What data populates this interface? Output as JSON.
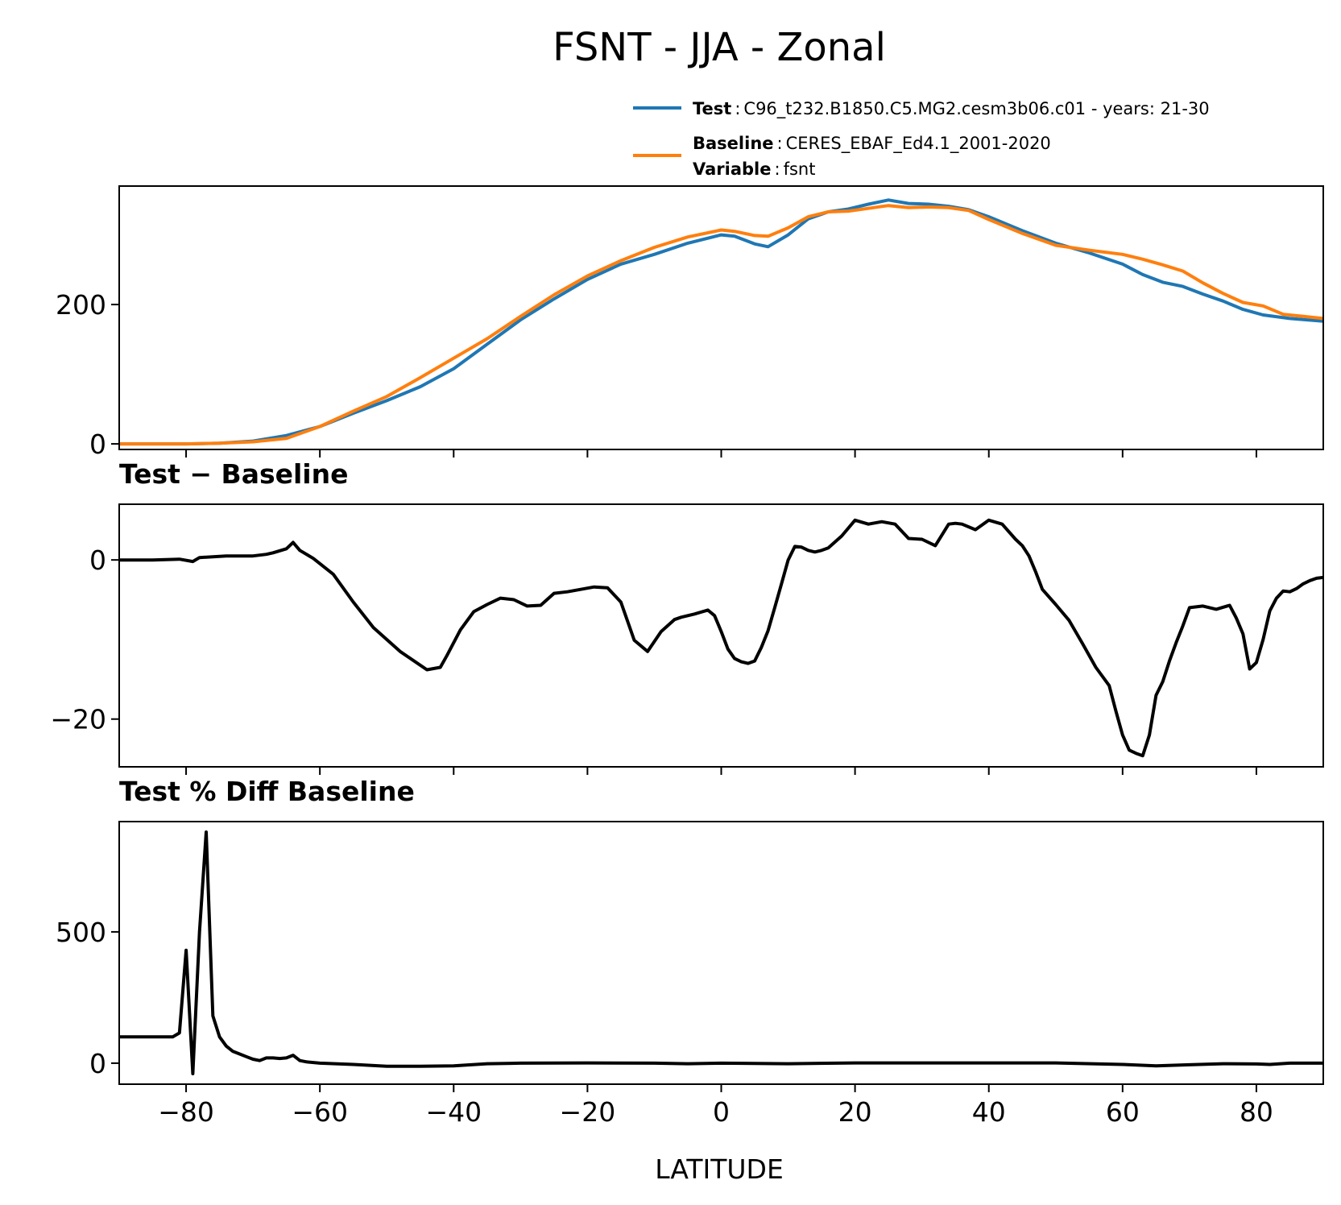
{
  "figure": {
    "title": "FSNT - JJA - Zonal",
    "legend": {
      "test_key": "Test",
      "test_value": "C96_t232.B1850.C5.MG2.cesm3b06.c01 - years: 21-30",
      "baseline_key": "Baseline",
      "baseline_value": "CERES_EBAF_Ed4.1_2001-2020",
      "variable_key": "Variable",
      "variable_value": "fsnt",
      "sep": ":"
    },
    "xlabel": "LATITUDE",
    "colors": {
      "test": "#1f77b4",
      "baseline": "#ff7f0e",
      "diff": "#000000"
    }
  },
  "chart_data": [
    {
      "type": "line",
      "title": "",
      "xlim": [
        -90,
        90
      ],
      "ylim": [
        -8,
        370
      ],
      "xticks": [
        -80,
        -60,
        -40,
        -20,
        0,
        20,
        40,
        60,
        80
      ],
      "yticks": [
        0,
        200
      ],
      "ytick_labels": [
        "0",
        "200"
      ],
      "legend": "top-right, above axes",
      "series": [
        {
          "name": "Test",
          "color": "#1f77b4",
          "x": [
            -90,
            -80,
            -75,
            -70,
            -65,
            -60,
            -55,
            -50,
            -45,
            -40,
            -35,
            -30,
            -25,
            -20,
            -15,
            -10,
            -5,
            0,
            2,
            5,
            7,
            10,
            13,
            16,
            19,
            22,
            25,
            28,
            31,
            34,
            37,
            40,
            45,
            50,
            55,
            60,
            63,
            66,
            69,
            72,
            75,
            78,
            81,
            85,
            90
          ],
          "y": [
            0,
            0,
            1,
            4,
            12,
            25,
            44,
            62,
            82,
            108,
            143,
            178,
            208,
            236,
            258,
            272,
            288,
            300,
            298,
            287,
            283,
            300,
            323,
            333,
            337,
            344,
            350,
            345,
            344,
            341,
            336,
            326,
            306,
            288,
            274,
            258,
            243,
            232,
            226,
            215,
            205,
            193,
            185,
            180,
            176
          ]
        },
        {
          "name": "Baseline",
          "color": "#ff7f0e",
          "x": [
            -90,
            -80,
            -75,
            -70,
            -65,
            -60,
            -55,
            -50,
            -45,
            -40,
            -35,
            -30,
            -25,
            -20,
            -15,
            -10,
            -5,
            0,
            2,
            5,
            7,
            10,
            13,
            16,
            19,
            22,
            25,
            28,
            31,
            34,
            37,
            40,
            45,
            50,
            55,
            60,
            63,
            66,
            69,
            72,
            75,
            78,
            81,
            84,
            87,
            90
          ],
          "y": [
            0,
            0,
            1,
            3,
            8,
            25,
            47,
            68,
            95,
            123,
            151,
            183,
            214,
            241,
            263,
            282,
            297,
            307,
            305,
            299,
            298,
            310,
            326,
            333,
            334,
            338,
            342,
            339,
            340,
            339,
            335,
            322,
            302,
            285,
            278,
            272,
            265,
            257,
            248,
            231,
            216,
            203,
            198,
            186,
            183,
            180
          ]
        }
      ]
    },
    {
      "type": "line",
      "title": "Test − Baseline",
      "xlim": [
        -90,
        90
      ],
      "ylim": [
        -26,
        7
      ],
      "xticks": [
        -80,
        -60,
        -40,
        -20,
        0,
        20,
        40,
        60,
        80
      ],
      "yticks": [
        -20,
        0
      ],
      "ytick_labels": [
        "−20",
        "0"
      ],
      "series": [
        {
          "name": "",
          "color": "#000000",
          "x": [
            -90,
            -85,
            -81,
            -79,
            -78,
            -76,
            -74,
            -70,
            -68,
            -67,
            -65,
            -64,
            -63,
            -61,
            -58,
            -55,
            -52,
            -48,
            -44,
            -42,
            -41,
            -39,
            -37,
            -35,
            -33,
            -31,
            -29,
            -27,
            -25,
            -23,
            -21,
            -19,
            -17,
            -15,
            -13,
            -11,
            -9,
            -7,
            -6,
            -4,
            -2,
            -1,
            0,
            1,
            2,
            3,
            4,
            5,
            6,
            7,
            8,
            9,
            10,
            11,
            12,
            13,
            14,
            15,
            16,
            18,
            20,
            22,
            24,
            26,
            28,
            30,
            32,
            34,
            35,
            36,
            38,
            40,
            42,
            44,
            45,
            46,
            47,
            48,
            50,
            52,
            54,
            56,
            58,
            59,
            60,
            61,
            62,
            63,
            64,
            65,
            66,
            67,
            68,
            69,
            70,
            72,
            74,
            76,
            77,
            78,
            79,
            80,
            81,
            82,
            83,
            84,
            85,
            86,
            87,
            88,
            89,
            90
          ],
          "y": [
            0,
            0,
            0.1,
            -0.2,
            0.3,
            0.4,
            0.5,
            0.5,
            0.7,
            0.9,
            1.4,
            2.2,
            1.2,
            0.2,
            -1.8,
            -5.3,
            -8.5,
            -11.5,
            -13.8,
            -13.5,
            -12,
            -8.8,
            -6.5,
            -5.6,
            -4.8,
            -5,
            -5.8,
            -5.7,
            -4.2,
            -4,
            -3.7,
            -3.4,
            -3.5,
            -5.3,
            -10.1,
            -11.5,
            -9,
            -7.5,
            -7.2,
            -6.8,
            -6.3,
            -7,
            -9,
            -11.2,
            -12.4,
            -12.8,
            -13,
            -12.7,
            -11,
            -8.9,
            -6,
            -3,
            0,
            1.7,
            1.6,
            1.2,
            1,
            1.2,
            1.5,
            3,
            5,
            4.5,
            4.8,
            4.5,
            2.7,
            2.6,
            1.8,
            4.5,
            4.6,
            4.5,
            3.8,
            5,
            4.5,
            2.6,
            1.8,
            0.5,
            -1.5,
            -3.7,
            -5.6,
            -7.6,
            -10.5,
            -13.5,
            -15.8,
            -19,
            -22,
            -23.9,
            -24.3,
            -24.6,
            -22,
            -17,
            -15.3,
            -12.7,
            -10.4,
            -8.3,
            -6,
            -5.8,
            -6.2,
            -5.7,
            -7.3,
            -9.3,
            -13.7,
            -12.9,
            -10,
            -6.4,
            -4.8,
            -3.9,
            -4,
            -3.6,
            -3,
            -2.6,
            -2.3,
            -2.2
          ]
        }
      ]
    },
    {
      "type": "line",
      "title": "Test % Diff Baseline",
      "xlim": [
        -90,
        90
      ],
      "ylim": [
        -80,
        920
      ],
      "xticks": [
        -80,
        -60,
        -40,
        -20,
        0,
        20,
        40,
        60,
        80
      ],
      "xtick_labels": [
        "−80",
        "−60",
        "−40",
        "−20",
        "0",
        "20",
        "40",
        "60",
        "80"
      ],
      "yticks": [
        0,
        500
      ],
      "ytick_labels": [
        "0",
        "500"
      ],
      "xlabel": "LATITUDE",
      "series": [
        {
          "name": "",
          "color": "#000000",
          "x": [
            -90,
            -82,
            -81,
            -80,
            -79,
            -78,
            -77,
            -76,
            -75,
            -74,
            -73,
            -72,
            -71,
            -70,
            -69,
            -68,
            -67,
            -66,
            -65,
            -64,
            -63,
            -62,
            -60,
            -55,
            -50,
            -45,
            -40,
            -35,
            -30,
            -20,
            -10,
            -5,
            0,
            10,
            20,
            30,
            40,
            50,
            60,
            65,
            70,
            75,
            80,
            82,
            85,
            90
          ],
          "y": [
            100,
            100,
            115,
            430,
            -40,
            500,
            880,
            180,
            100,
            65,
            45,
            35,
            25,
            15,
            10,
            20,
            20,
            18,
            20,
            30,
            10,
            5,
            0,
            -5,
            -12,
            -12,
            -10,
            -2,
            0,
            1,
            0,
            -2,
            0,
            -2,
            1,
            1,
            1,
            1,
            -5,
            -10,
            -6,
            -2,
            -3,
            -5,
            0,
            0
          ]
        }
      ]
    }
  ]
}
